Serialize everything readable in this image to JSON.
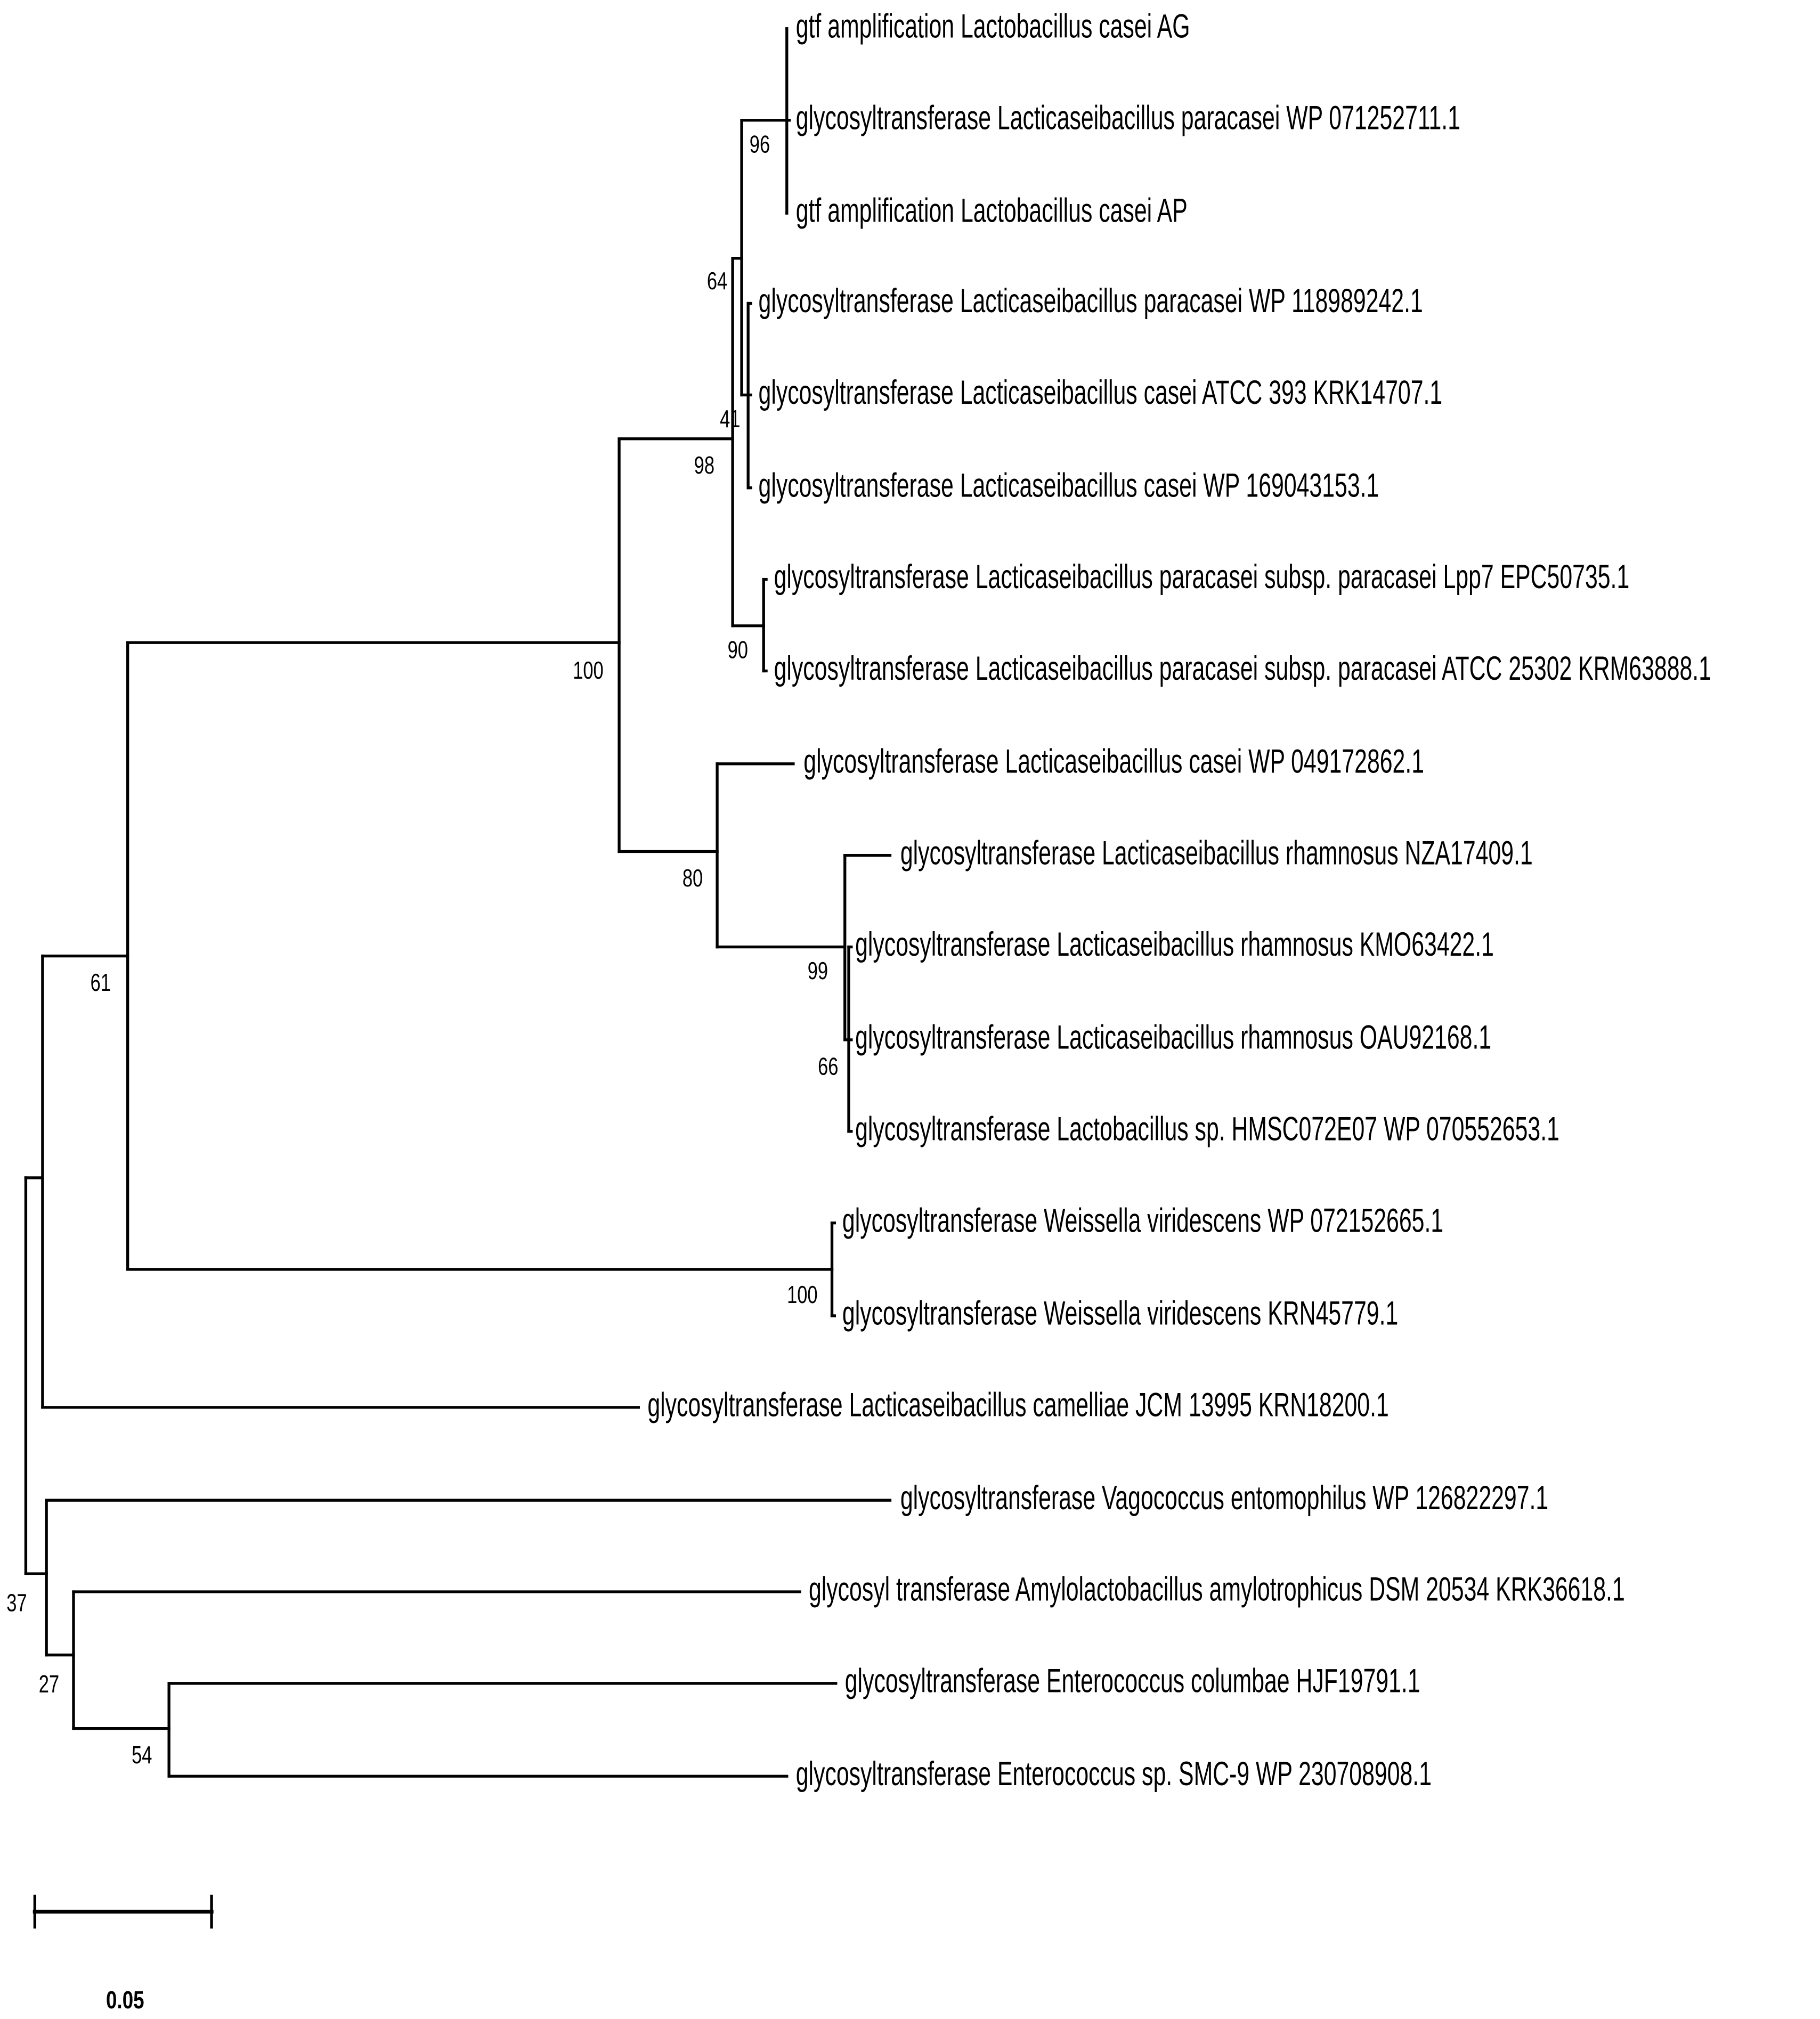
{
  "leaves": [
    "gtf amplification Lactobacillus casei AG",
    "glycosyltransferase Lacticaseibacillus paracasei WP 071252711.1",
    "gtf amplification Lactobacillus casei AP",
    "glycosyltransferase Lacticaseibacillus paracasei WP 118989242.1",
    "glycosyltransferase Lacticaseibacillus casei ATCC 393 KRK14707.1",
    "glycosyltransferase Lacticaseibacillus casei WP 169043153.1",
    "glycosyltransferase Lacticaseibacillus paracasei subsp. paracasei Lpp7 EPC50735.1",
    "glycosyltransferase Lacticaseibacillus paracasei subsp. paracasei ATCC 25302 KRM63888.1",
    "glycosyltransferase Lacticaseibacillus casei WP 049172862.1",
    "glycosyltransferase Lacticaseibacillus rhamnosus NZA17409.1",
    "glycosyltransferase Lacticaseibacillus rhamnosus KMO63422.1",
    "glycosyltransferase Lacticaseibacillus rhamnosus OAU92168.1",
    "glycosyltransferase Lactobacillus sp. HMSC072E07 WP 070552653.1",
    "glycosyltransferase Weissella viridescens WP 072152665.1",
    "glycosyltransferase Weissella viridescens KRN45779.1",
    "glycosyltransferase Lacticaseibacillus camelliae JCM 13995 KRN18200.1",
    "glycosyltransferase Vagococcus entomophilus WP 126822297.1",
    "glycosyl transferase Amylolactobacillus amylotrophicus DSM 20534 KRK36618.1",
    "glycosyltransferase Enterococcus columbae HJF19791.1",
    "glycosyltransferase Enterococcus sp. SMC-9 WP 230708908.1"
  ],
  "bootstrap": [
    96,
    64,
    41,
    98,
    90,
    100,
    80,
    99,
    66,
    61,
    100,
    37,
    27,
    54
  ],
  "scale_bar": {
    "label": "0.05"
  }
}
